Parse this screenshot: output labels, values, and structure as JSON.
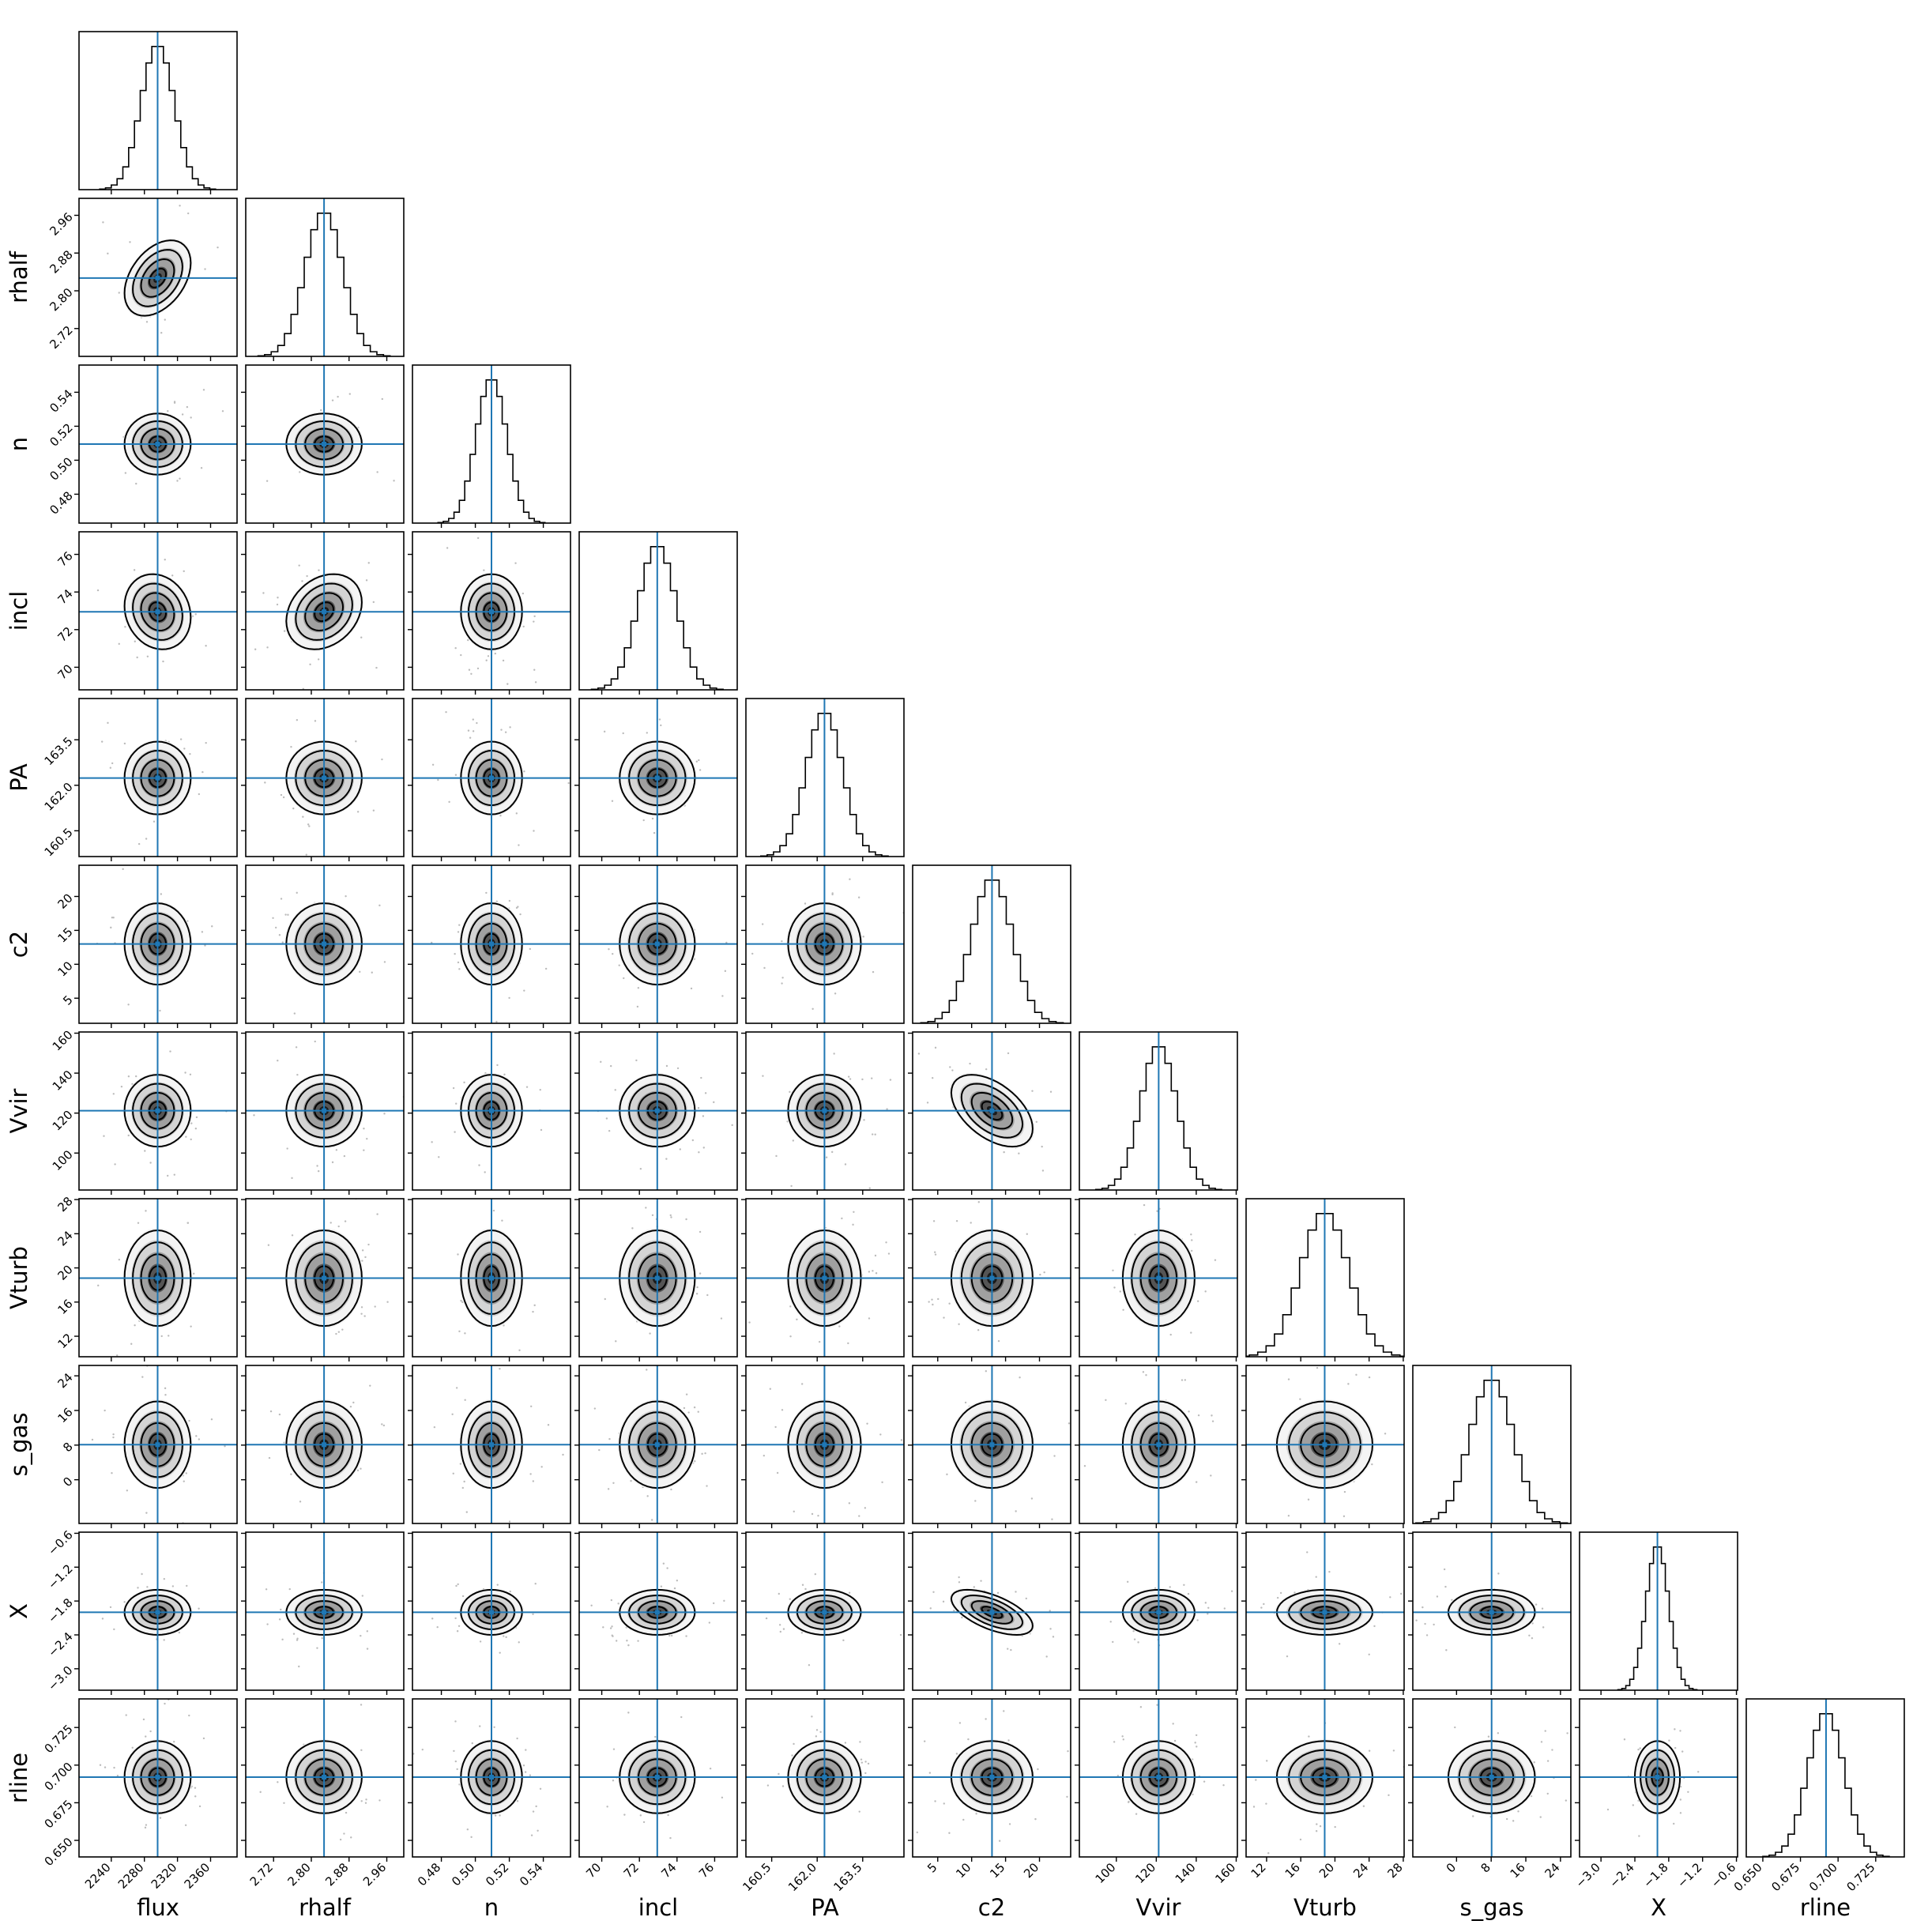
{
  "chart_data": {
    "type": "corner",
    "truth_color": "#1f77b4",
    "parameters": [
      {
        "name": "flux",
        "truth": 2296,
        "range": [
          2201,
          2392
        ],
        "ticks": [
          2240,
          2280,
          2320,
          2360
        ],
        "tick_labels": [
          "2240",
          "2280",
          "2320",
          "2360"
        ]
      },
      {
        "name": "rhalf",
        "truth": 2.827,
        "range": [
          2.661,
          2.996
        ],
        "ticks": [
          2.72,
          2.8,
          2.88,
          2.96
        ],
        "tick_labels": [
          "2.72",
          "2.80",
          "2.88",
          "2.96"
        ]
      },
      {
        "name": "n",
        "truth": 0.5095,
        "range": [
          0.463,
          0.556
        ],
        "ticks": [
          0.48,
          0.5,
          0.52,
          0.54
        ],
        "tick_labels": [
          "0.48",
          "0.50",
          "0.52",
          "0.54"
        ]
      },
      {
        "name": "incl",
        "truth": 72.95,
        "range": [
          68.8,
          77.2
        ],
        "ticks": [
          70,
          72,
          74,
          76
        ],
        "tick_labels": [
          "70",
          "72",
          "74",
          "76"
        ]
      },
      {
        "name": "PA",
        "truth": 162.24,
        "range": [
          159.65,
          164.86
        ],
        "ticks": [
          160.5,
          162.0,
          163.5
        ],
        "tick_labels": [
          "160.5",
          "162.0",
          "163.5"
        ]
      },
      {
        "name": "c2",
        "truth": 13.0,
        "range": [
          1.3,
          24.6
        ],
        "ticks": [
          5,
          10,
          15,
          20
        ],
        "tick_labels": [
          "5",
          "10",
          "15",
          "20"
        ]
      },
      {
        "name": "Vvir",
        "truth": 121.2,
        "range": [
          81.5,
          160.6
        ],
        "ticks": [
          100,
          120,
          140,
          160
        ],
        "tick_labels": [
          "100",
          "120",
          "140",
          "160"
        ]
      },
      {
        "name": "Vturb",
        "truth": 18.8,
        "range": [
          9.6,
          28.1
        ],
        "ticks": [
          12,
          16,
          20,
          24,
          28
        ],
        "tick_labels": [
          "12",
          "16",
          "20",
          "24",
          "28"
        ]
      },
      {
        "name": "s_gas",
        "truth": 8.1,
        "range": [
          -10.1,
          26.4
        ],
        "ticks": [
          0,
          8,
          16,
          24
        ],
        "tick_labels": [
          "0",
          "8",
          "16",
          "24"
        ]
      },
      {
        "name": "X",
        "truth": -2.0,
        "range": [
          -3.38,
          -0.58
        ],
        "ticks": [
          -3.0,
          -2.4,
          -1.8,
          -1.2,
          -0.6
        ],
        "tick_labels": [
          "−3.0",
          "−2.4",
          "−1.8",
          "−1.2",
          "−0.6"
        ]
      },
      {
        "name": "rline",
        "truth": 0.692,
        "range": [
          0.639,
          0.744
        ],
        "ticks": [
          0.65,
          0.675,
          0.7,
          0.725
        ],
        "tick_labels": [
          "0.650",
          "0.675",
          "0.700",
          "0.725"
        ]
      }
    ]
  }
}
